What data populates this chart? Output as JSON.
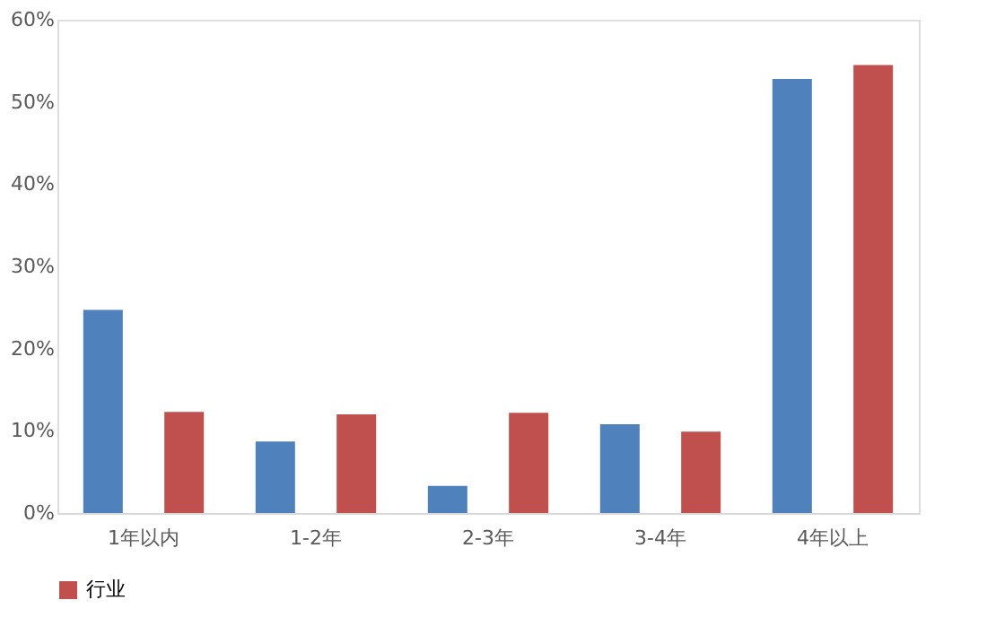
{
  "chart_data": {
    "type": "bar",
    "categories": [
      "1年以内",
      "1-2年",
      "2-3年",
      "3-4年",
      "4年以上"
    ],
    "series": [
      {
        "color": "#4f81bd",
        "values": [
          24.7,
          8.7,
          3.3,
          10.8,
          52.8
        ]
      },
      {
        "name": "行业",
        "color": "#c0504d",
        "values": [
          12.3,
          12.0,
          12.2,
          9.9,
          54.5
        ]
      }
    ],
    "ylim": [
      0,
      60
    ],
    "yticks": [
      {
        "value": 0,
        "label": "0%"
      },
      {
        "value": 10,
        "label": "10%"
      },
      {
        "value": 20,
        "label": "20%"
      },
      {
        "value": 30,
        "label": "30%"
      },
      {
        "value": 40,
        "label": "40%"
      },
      {
        "value": 50,
        "label": "50%"
      },
      {
        "value": 60,
        "label": "60%"
      }
    ],
    "grid": false,
    "legend": "bottom"
  }
}
